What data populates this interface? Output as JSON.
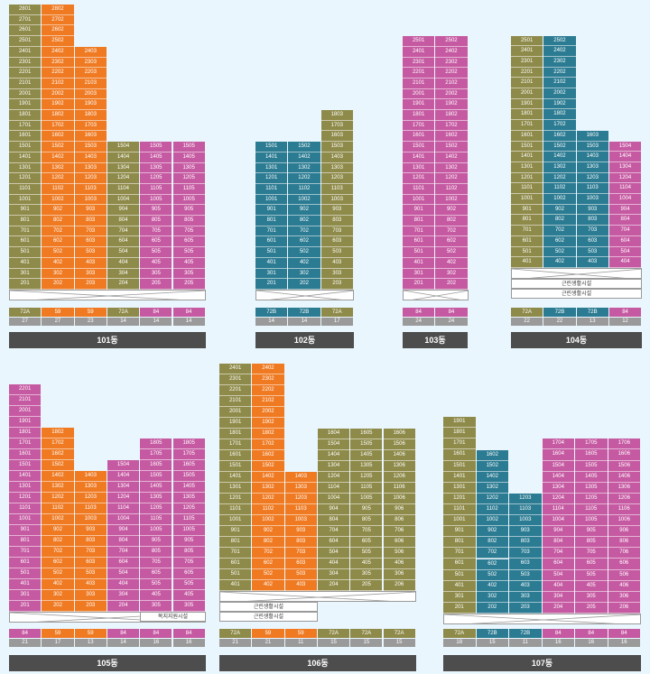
{
  "colors": {
    "olive": "#8e8a49",
    "orange": "#ef7a22",
    "pink": "#c65aa2",
    "teal": "#2b7b92",
    "count_bar": "#9a9a9a",
    "label_bar": "#4d4d4d"
  },
  "buildings": [
    {
      "id": "b101",
      "name": "101동",
      "columns": [
        {
          "line": 1,
          "top": 28,
          "bottom": 2,
          "color": "olive",
          "type": "72A",
          "count": "27"
        },
        {
          "line": 2,
          "top": 28,
          "bottom": 2,
          "color": "orange",
          "type": "59",
          "count": "27"
        },
        {
          "line": 3,
          "top": 24,
          "bottom": 2,
          "color": "orange",
          "type": "59",
          "count": "23"
        },
        {
          "line": 4,
          "top": 15,
          "bottom": 2,
          "color": "olive",
          "type": "72A",
          "count": "14"
        },
        {
          "line": 5,
          "top": 15,
          "bottom": 2,
          "color": "pink",
          "type": "84",
          "count": "14"
        },
        {
          "line": 5,
          "top": 15,
          "bottom": 2,
          "color": "pink",
          "type": "84",
          "count": "14",
          "label_line": 5
        }
      ],
      "facility": []
    },
    {
      "id": "b102",
      "name": "102동",
      "columns": [
        {
          "line": 1,
          "top": 15,
          "bottom": 2,
          "color": "teal",
          "type": "72B",
          "count": "14"
        },
        {
          "line": 2,
          "top": 15,
          "bottom": 2,
          "color": "teal",
          "type": "72B",
          "count": "14"
        },
        {
          "line": 3,
          "top": 18,
          "bottom": 2,
          "color": "olive",
          "type": "72A",
          "count": "17"
        }
      ],
      "facility": []
    },
    {
      "id": "b103",
      "name": "103동",
      "columns": [
        {
          "line": 1,
          "top": 25,
          "bottom": 2,
          "color": "pink",
          "type": "84",
          "count": "24"
        },
        {
          "line": 2,
          "top": 25,
          "bottom": 2,
          "color": "pink",
          "type": "84",
          "count": "24"
        }
      ],
      "facility": []
    },
    {
      "id": "b104",
      "name": "104동",
      "columns": [
        {
          "line": 1,
          "top": 25,
          "bottom": 4,
          "color": "olive",
          "type": "72A",
          "count": "22"
        },
        {
          "line": 2,
          "top": 25,
          "bottom": 4,
          "color": "teal",
          "type": "72B",
          "count": "22"
        },
        {
          "line": 3,
          "top": 16,
          "bottom": 4,
          "color": "teal",
          "type": "72B",
          "count": "13"
        },
        {
          "line": 4,
          "top": 15,
          "bottom": 4,
          "color": "pink",
          "type": "84",
          "count": "12"
        }
      ],
      "facility": [
        "근린생활시설",
        "근린생활시설"
      ]
    },
    {
      "id": "b105",
      "name": "105동",
      "columns": [
        {
          "line": 1,
          "top": 22,
          "bottom": 2,
          "color": "pink",
          "type": "84",
          "count": "21"
        },
        {
          "line": 2,
          "top": 18,
          "bottom": 2,
          "color": "orange",
          "type": "59",
          "count": "17"
        },
        {
          "line": 3,
          "top": 14,
          "bottom": 2,
          "color": "orange",
          "type": "59",
          "count": "13"
        },
        {
          "line": 4,
          "top": 15,
          "bottom": 2,
          "color": "pink",
          "type": "84",
          "count": "14"
        },
        {
          "line": 5,
          "top": 18,
          "bottom": 3,
          "color": "pink",
          "type": "84",
          "count": "16"
        },
        {
          "line": 5,
          "top": 18,
          "bottom": 3,
          "color": "pink",
          "type": "84",
          "count": "16"
        }
      ],
      "facility": [
        "복지지원시설"
      ]
    },
    {
      "id": "b106",
      "name": "106동",
      "columns": [
        {
          "line": 1,
          "top": 24,
          "bottom": 4,
          "color": "olive",
          "type": "72A",
          "count": "21"
        },
        {
          "line": 2,
          "top": 24,
          "bottom": 4,
          "color": "orange",
          "type": "59",
          "count": "21"
        },
        {
          "line": 3,
          "top": 14,
          "bottom": 4,
          "color": "orange",
          "type": "59",
          "count": "11"
        },
        {
          "line": 4,
          "top": 16,
          "bottom": 2,
          "color": "olive",
          "type": "72A",
          "count": "15"
        },
        {
          "line": 5,
          "top": 16,
          "bottom": 2,
          "color": "olive",
          "type": "72A",
          "count": "15"
        },
        {
          "line": 6,
          "top": 16,
          "bottom": 2,
          "color": "olive",
          "type": "72A",
          "count": "15"
        }
      ],
      "facility": [
        "근린생활시설",
        "근린생활시설"
      ]
    },
    {
      "id": "b107",
      "name": "107동",
      "columns": [
        {
          "line": 1,
          "top": 19,
          "bottom": 2,
          "color": "olive",
          "type": "72A",
          "count": "18"
        },
        {
          "line": 2,
          "top": 16,
          "bottom": 2,
          "color": "teal",
          "type": "72B",
          "count": "15"
        },
        {
          "line": 3,
          "top": 12,
          "bottom": 2,
          "color": "teal",
          "type": "72B",
          "count": "11"
        },
        {
          "line": 4,
          "top": 17,
          "bottom": 2,
          "color": "pink",
          "type": "84",
          "count": "16"
        },
        {
          "line": 5,
          "top": 17,
          "bottom": 2,
          "color": "pink",
          "type": "84",
          "count": "16"
        },
        {
          "line": 6,
          "top": 17,
          "bottom": 2,
          "color": "pink",
          "type": "84",
          "count": "16"
        }
      ],
      "facility": []
    }
  ]
}
